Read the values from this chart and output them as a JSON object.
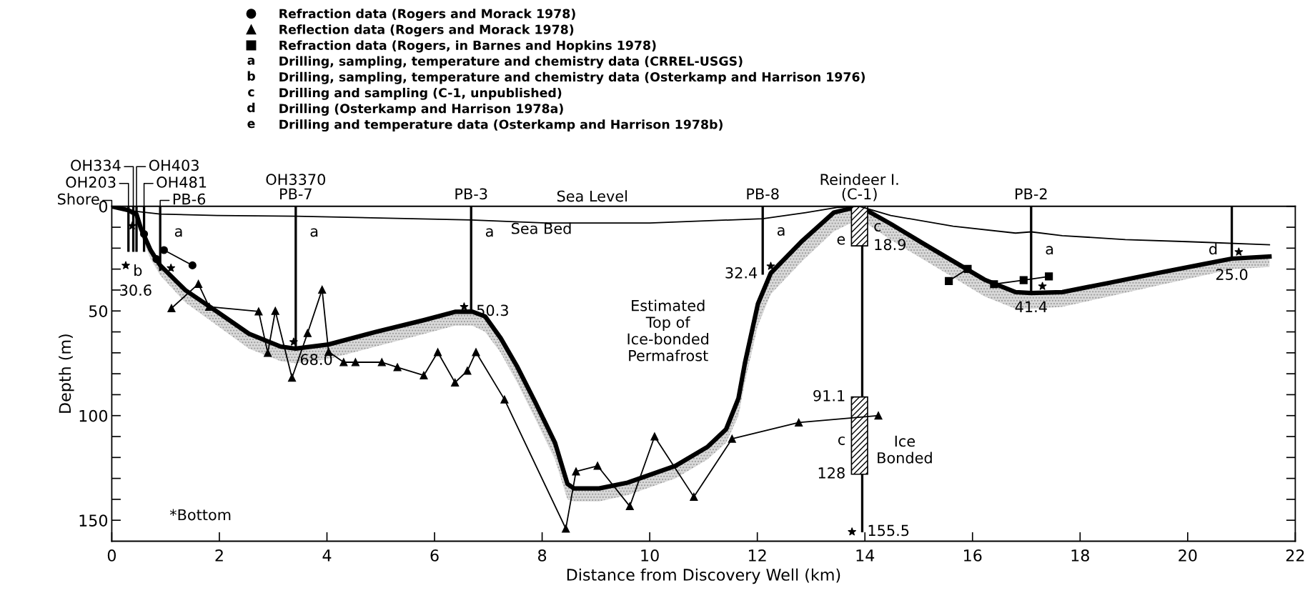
{
  "chart_data": {
    "type": "line",
    "xlabel": "Distance from Discovery Well (km)",
    "ylabel": "Depth (m)",
    "xlim": [
      0,
      22
    ],
    "ylim": [
      160,
      0
    ],
    "xticks": [
      0,
      2,
      4,
      6,
      8,
      10,
      12,
      14,
      16,
      18,
      20,
      22
    ],
    "yticks": [
      0,
      {
        "value": 10,
        "label": null
      },
      {
        "value": 20,
        "label": null
      },
      {
        "value": 30,
        "label": null
      },
      {
        "value": 40,
        "label": null
      },
      50,
      {
        "value": 60,
        "label": null
      },
      {
        "value": 70,
        "label": null
      },
      {
        "value": 80,
        "label": null
      },
      {
        "value": 90,
        "label": null
      },
      100,
      {
        "value": 110,
        "label": null
      },
      {
        "value": 120,
        "label": null
      },
      {
        "value": 130,
        "label": null
      },
      {
        "value": 140,
        "label": null
      },
      150
    ],
    "grid": false,
    "legend": "top",
    "series": [
      {
        "name": "Refraction data (Rogers and Morack 1978)",
        "marker": "circle",
        "color": "#000000",
        "x": [
          0.6,
          0.7,
          0.83,
          0.9,
          0.97,
          1.5
        ],
        "values": [
          13.2,
          null,
          25.2,
          null,
          20.9,
          28.2
        ]
      },
      {
        "name": "Reflection data (Rogers and Morack 1978)",
        "marker": "triangle",
        "color": "#000000",
        "x": [
          1.11,
          1.61,
          1.81,
          2.73,
          2.9,
          3.04,
          3.35,
          3.64,
          3.91,
          4.03,
          4.31,
          4.53,
          5.02,
          5.31,
          5.8,
          6.06,
          6.38,
          6.61,
          6.77,
          7.3,
          8.44,
          8.63,
          9.03,
          9.63,
          10.09,
          10.82,
          11.53,
          12.77,
          14.25
        ],
        "values": [
          48.7,
          37.1,
          48,
          50.2,
          70,
          50,
          81.9,
          60.6,
          39.8,
          69.5,
          74.5,
          74.5,
          74.5,
          76.9,
          80.8,
          69.7,
          84.2,
          78.6,
          69.7,
          92.3,
          154,
          126.7,
          124,
          143.3,
          110,
          138.8,
          111.1,
          103.3,
          100
        ]
      },
      {
        "name": "Refraction data (Rogers, in Barnes and Hopkins 1978)",
        "marker": "square",
        "color": "#000000",
        "x": [
          15.56,
          15.91,
          16.1,
          16.4,
          16.95,
          17.42
        ],
        "values": [
          35.7,
          29.9,
          null,
          37.2,
          35.3,
          33.5
        ]
      },
      {
        "marker": "none",
        "color": "#000000",
        "x": [
          0,
          0.31,
          0.46,
          0.54,
          0.72,
          0.9,
          1.37,
          1.96,
          2.55,
          3.14,
          3.42,
          4.03,
          4.91,
          5.8,
          6.38,
          6.7,
          6.94,
          7.23,
          7.53,
          7.88,
          8.24,
          8.47,
          8.59,
          9.06,
          9.59,
          10.48,
          11.07,
          11.42,
          11.65,
          11.77,
          12.01,
          12.25,
          12.84,
          13.42,
          13.9,
          14.48,
          15.06,
          15.64,
          16.22,
          16.8,
          17.09,
          17.67,
          18.55,
          19.42,
          20.3,
          20.82,
          21.52
        ],
        "values": [
          0,
          1.9,
          3.8,
          10.5,
          20.9,
          28.2,
          40.1,
          50.4,
          60.9,
          67,
          68.0,
          66,
          60,
          54.4,
          50.4,
          50.3,
          52.6,
          63,
          76.3,
          94,
          113,
          132.6,
          134.8,
          134.8,
          132,
          124,
          115,
          106.5,
          91.7,
          74.8,
          46.7,
          31.9,
          16.4,
          3,
          0,
          8.4,
          17.4,
          26.2,
          35,
          41,
          41.4,
          41,
          36.5,
          32,
          27.6,
          25.0,
          24
        ],
        "upper": [
          0,
          1.9,
          3.8,
          10.5,
          20.9,
          28.2,
          40.1,
          50.4,
          60.9,
          67,
          68.0,
          66,
          60,
          54.4,
          50.4,
          50.3,
          52.6,
          63,
          76.3,
          94,
          113,
          132.6,
          134.8,
          134.8,
          132,
          124,
          115,
          106.5,
          91.7,
          74.8,
          46.7,
          31.9,
          16.4,
          3,
          0,
          8.4,
          17.4,
          26.2,
          35,
          41,
          41.4,
          41,
          36.5,
          32,
          27.6,
          25.0,
          24
        ],
        "lower": [
          0,
          3,
          6,
          14,
          25,
          33,
          46,
          57,
          68,
          74,
          75,
          73,
          67,
          61,
          57,
          57,
          60,
          70,
          84,
          102,
          121,
          140,
          141,
          141,
          138,
          130,
          121,
          113,
          100,
          84,
          57,
          42,
          26,
          12,
          6,
          16,
          25,
          34,
          43,
          49,
          49,
          48,
          43,
          38,
          33,
          30,
          29
        ]
      },
      {
        "marker": "none",
        "color": "#000000",
        "x": [
          0,
          0.31,
          0.9,
          1.96,
          3.42,
          6.68,
          8.12,
          10.0,
          12.1,
          12.9,
          13.5,
          13.9,
          14.48,
          15.64,
          16.8,
          17.09,
          17.67,
          18.84,
          20.0,
          21.52
        ],
        "values": [
          0,
          2,
          3.7,
          4.4,
          4.7,
          6.5,
          8,
          8,
          5.9,
          3,
          0.5,
          0,
          4.4,
          9.5,
          12.8,
          12.2,
          14,
          15.9,
          16.9,
          18.4
        ]
      },
      {
        "type": "bar",
        "color": "#000000",
        "x": [
          0.31,
          0.4,
          0.46,
          0.6,
          0.9,
          3.42,
          6.68,
          12.1,
          13.95,
          17.09,
          20.82
        ],
        "values": [
          21.5,
          21.5,
          21.5,
          21.5,
          30.6,
          68.0,
          50.3,
          32.4,
          155.5,
          41.4,
          25.0
        ]
      },
      {
        "type": "bar",
        "color": "#000000",
        "x": [
          13.9,
          13.9
        ],
        "base": [
          0,
          91.1
        ],
        "values": [
          18.9,
          36.9
        ]
      },
      {
        "type": "scatter",
        "marker": "star",
        "color": "#000000",
        "x": [
          0.38,
          0.26,
          1.1,
          3.38,
          6.55,
          12.25,
          13.76,
          17.3,
          20.95
        ],
        "values": [
          9.3,
          28.3,
          29.5,
          64.8,
          48,
          28.6,
          155.5,
          38.2,
          21.8
        ]
      }
    ],
    "annotations": [
      "a Drilling, sampling, temperature and chemistry data (CRREL-USGS)",
      "b Drilling, sampling, temperature and chemistry data (Osterkamp and Harrison 1976)",
      "c Drilling and sampling (C-1, unpublished)",
      "d Drilling (Osterkamp and Harrison 1978a)",
      "e Drilling and temperature data (Osterkamp and Harrison 1978b)",
      "Sea Level",
      "Sea Bed",
      "Estimated\nTop of\nIce-bonded\nPermafrost",
      "Ice\nBonded",
      "*Bottom",
      "b",
      {
        "text": "Shore",
        "x": 0,
        "y": 0
      },
      {
        "text": "PB-6",
        "x": 0.9,
        "y": 0
      },
      {
        "text": "OH203",
        "x": 0.31,
        "y": 0
      },
      {
        "text": "OH481",
        "x": 0.6,
        "y": 0
      },
      {
        "text": "OH334",
        "x": 0.4,
        "y": 0
      },
      {
        "text": "OH403",
        "x": 0.46,
        "y": 0
      },
      {
        "text": "OH3370\nPB-7",
        "x": 3.42,
        "y": 0
      },
      {
        "text": "PB-3",
        "x": 6.68,
        "y": 0
      },
      {
        "text": "PB-8",
        "x": 12.1,
        "y": 0
      },
      {
        "text": "Reindeer I.\n(C-1)",
        "x": 13.9,
        "y": 0
      },
      {
        "text": "PB-2",
        "x": 17.09,
        "y": 0
      },
      {
        "text": "18.9",
        "x": 13.9,
        "y": 18.9
      },
      {
        "text": "91.1",
        "x": 13.9,
        "y": 91.1
      },
      {
        "text": "128",
        "x": 13.9,
        "y": 128
      },
      {
        "text": "a",
        "x": 0.9,
        "y": 12.5
      },
      {
        "text": "a",
        "x": 3.42,
        "y": 12.5
      },
      {
        "text": "a",
        "x": 6.68,
        "y": 12.5
      },
      {
        "text": "a",
        "x": 12.1,
        "y": 12
      },
      {
        "text": "a",
        "x": 17.09,
        "y": 21
      },
      {
        "text": "c",
        "x": 13.9,
        "y": 10
      },
      {
        "text": "c",
        "x": 13.9,
        "y": 112
      },
      {
        "text": "d",
        "x": 20.82,
        "y": 21
      },
      {
        "text": "e",
        "x": 13.9,
        "y": 16.3
      },
      {
        "text": "30.6",
        "x": 0.9,
        "y": 30.6
      },
      {
        "text": "68.0",
        "x": 3.42,
        "y": 68.0
      },
      {
        "text": "50.3",
        "x": 6.68,
        "y": 50.3
      },
      {
        "text": "32.4",
        "x": 12.1,
        "y": 32.4
      },
      {
        "text": "155.5",
        "x": 13.95,
        "y": 155.5
      },
      {
        "text": "41.4",
        "x": 17.09,
        "y": 41.4
      },
      {
        "text": "25.0",
        "x": 20.82,
        "y": 25.0
      }
    ]
  }
}
